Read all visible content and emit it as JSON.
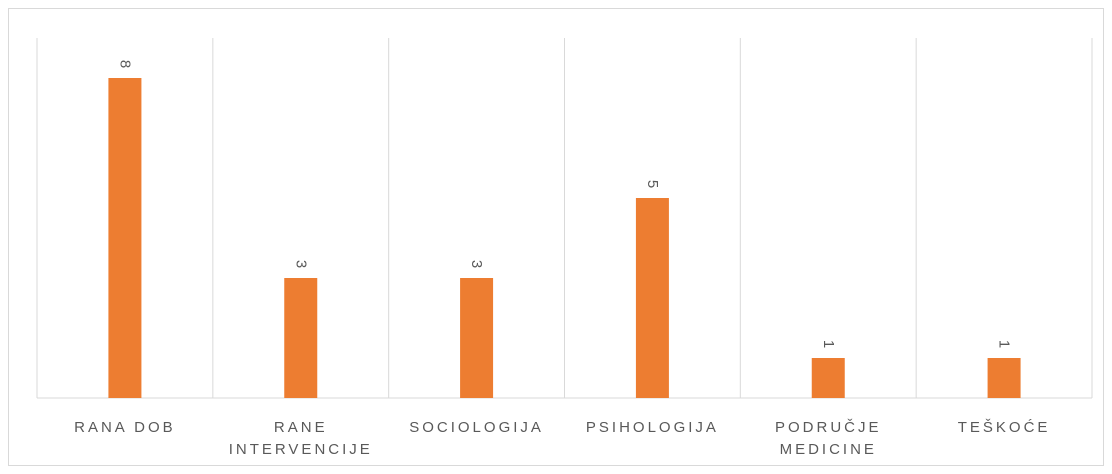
{
  "chart_data": {
    "type": "bar",
    "title": "",
    "xlabel": "",
    "ylabel": "",
    "categories": [
      [
        "RANA DOB"
      ],
      [
        "RANE",
        "INTERVENCIJE"
      ],
      [
        "SOCIOLOGIJA"
      ],
      [
        "PSIHOLOGIJA"
      ],
      [
        "PODRUČJE",
        "MEDICINE"
      ],
      [
        "TEŠKOĆE"
      ]
    ],
    "values": [
      8,
      3,
      3,
      5,
      1,
      1
    ],
    "ylim": [
      0,
      9
    ],
    "gridlines": "vertical category separators",
    "legend": "none",
    "data_labels": "rotated above bars",
    "bar_color": "#ed7d31",
    "axis_color": "#d9d9d9"
  }
}
